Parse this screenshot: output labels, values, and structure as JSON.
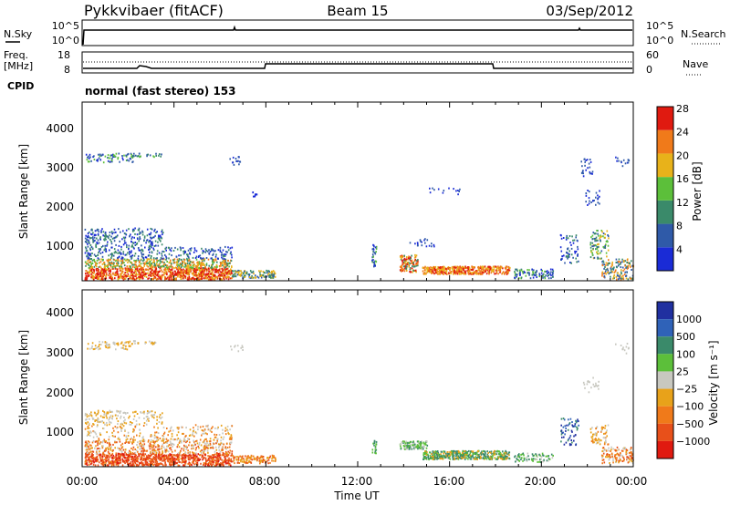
{
  "header": {
    "radar": "Pykkvibaer (fitACF)",
    "beam": "Beam 15",
    "date": "03/Sep/2012"
  },
  "noise_panel": {
    "left_label": "N.Sky",
    "right_label": "N.Search",
    "left_ticks": [
      "10^5",
      "10^0"
    ],
    "right_ticks": [
      "10^5",
      "10^0"
    ]
  },
  "freq_panel": {
    "left_label_1": "Freq.",
    "left_label_2": "[MHz]",
    "right_label": "Nave",
    "left_ticks": [
      "18",
      "8"
    ],
    "right_ticks": [
      "60",
      "0"
    ]
  },
  "cpid": {
    "label": "CPID",
    "text": "normal (fast stereo) 153"
  },
  "chart_data": [
    {
      "type": "heatmap",
      "name": "power-panel",
      "ylabel": "Slant Range [km]",
      "xlabel": "",
      "y_ticks": [
        "1000",
        "2000",
        "3000",
        "4000"
      ],
      "x_ticks": [
        "00:00",
        "04:00",
        "08:00",
        "12:00",
        "16:00",
        "20:00",
        "00:00"
      ],
      "colorbar_label": "Power [dB]",
      "colorbar_ticks": [
        "4",
        "8",
        "12",
        "16",
        "20",
        "24",
        "28"
      ],
      "colors": [
        "#1a2bd6",
        "#2f5aa8",
        "#3a8a6a",
        "#5cbf3a",
        "#e8b21a",
        "#f07a1a",
        "#e01a10"
      ]
    },
    {
      "type": "heatmap",
      "name": "velocity-panel",
      "ylabel": "Slant Range [km]",
      "xlabel": "Time UT",
      "y_ticks": [
        "1000",
        "2000",
        "3000",
        "4000"
      ],
      "x_ticks": [
        "00:00",
        "04:00",
        "08:00",
        "12:00",
        "16:00",
        "20:00",
        "00:00"
      ],
      "colorbar_label": "Velocity [m s⁻¹]",
      "colorbar_ticks": [
        "1000",
        "500",
        "100",
        "25",
        "−25",
        "−100",
        "−500",
        "−1000"
      ],
      "colors": [
        "#2030a0",
        "#2f62b8",
        "#3a8a6a",
        "#5cbf3a",
        "#c8c8c0",
        "#e8a21a",
        "#f07a1a",
        "#e8501a",
        "#e01a10"
      ]
    }
  ]
}
